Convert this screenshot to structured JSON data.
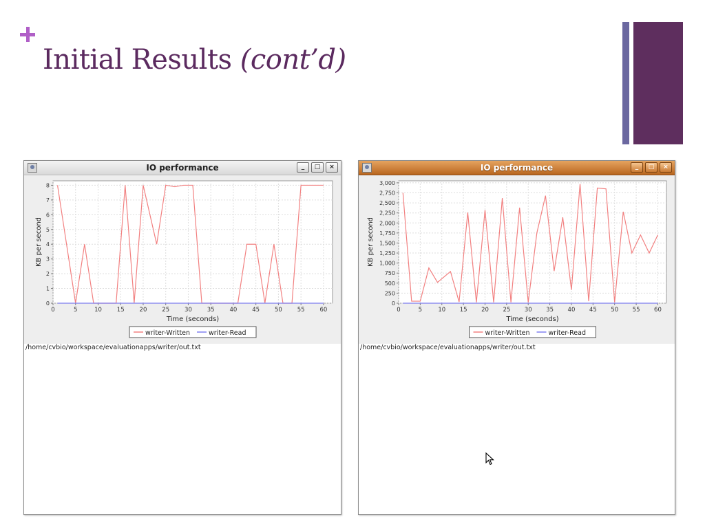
{
  "slide": {
    "title_main": "Initial Results ",
    "title_italic": "(cont’d)",
    "accent_color": "#b05fc7",
    "title_color": "#5b2a5f"
  },
  "windows": [
    {
      "title": "IO performance",
      "path": "/home/cvbio/workspace/evaluationapps/writer/out.txt",
      "buttons": [
        "minimize-icon",
        "maximize-icon",
        "close-icon"
      ]
    },
    {
      "title": "IO performance",
      "path": "/home/cvbio/workspace/evaluationapps/writer/out.txt",
      "buttons": [
        "minimize-icon",
        "maximize-icon",
        "close-icon"
      ]
    }
  ],
  "chart_data": [
    {
      "type": "line",
      "title": "",
      "xlabel": "Time (seconds)",
      "ylabel": "KB per second",
      "xlim": [
        0,
        62
      ],
      "ylim": [
        0,
        8.3
      ],
      "xticks": [
        0,
        5,
        10,
        15,
        20,
        25,
        30,
        35,
        40,
        45,
        50,
        55,
        60
      ],
      "yticks": [
        0,
        1,
        2,
        3,
        4,
        5,
        6,
        7,
        8
      ],
      "ytick_labels": [
        "0",
        "1",
        "2",
        "3",
        "4",
        "5",
        "6",
        "7",
        "8"
      ],
      "grid": true,
      "legend": "bottom-center",
      "series": [
        {
          "name": "writer-Written",
          "color": "#f28080",
          "x": [
            1,
            5,
            7,
            9,
            14,
            16,
            18,
            20,
            23,
            25,
            27,
            29,
            31,
            33,
            35,
            41,
            43,
            45,
            47,
            49,
            51,
            53,
            55,
            60
          ],
          "y": [
            8,
            0,
            4,
            0,
            0,
            8,
            0,
            8,
            4,
            8,
            7.9,
            8,
            8,
            0,
            0,
            0,
            4,
            4,
            0,
            4,
            0,
            0,
            8,
            8
          ]
        },
        {
          "name": "writer-Read",
          "color": "#7f7ff0",
          "x": [
            1,
            60
          ],
          "y": [
            0,
            0
          ]
        }
      ]
    },
    {
      "type": "line",
      "title": "",
      "xlabel": "Time (seconds)",
      "ylabel": "KB per second",
      "xlim": [
        0,
        62
      ],
      "ylim": [
        0,
        3050
      ],
      "xticks": [
        0,
        5,
        10,
        15,
        20,
        25,
        30,
        35,
        40,
        45,
        50,
        55,
        60
      ],
      "yticks": [
        0,
        250,
        500,
        750,
        1000,
        1250,
        1500,
        1750,
        2000,
        2250,
        2500,
        2750,
        3000
      ],
      "ytick_labels": [
        "0",
        "250",
        "500",
        "750",
        "1,000",
        "1,250",
        "1,500",
        "1,750",
        "2,000",
        "2,250",
        "2,500",
        "2,750",
        "3,000"
      ],
      "grid": true,
      "legend": "bottom-center",
      "series": [
        {
          "name": "writer-Written",
          "color": "#f28080",
          "x": [
            1,
            3,
            5,
            7,
            9,
            12,
            14,
            16,
            18,
            20,
            22,
            24,
            26,
            28,
            30,
            32,
            34,
            36,
            38,
            40,
            42,
            44,
            46,
            48,
            50,
            52,
            54,
            56,
            58,
            60
          ],
          "y": [
            2750,
            50,
            50,
            880,
            520,
            790,
            30,
            2260,
            20,
            2320,
            20,
            2620,
            20,
            2380,
            20,
            1750,
            2680,
            800,
            2140,
            330,
            2970,
            50,
            2870,
            2850,
            20,
            2280,
            1250,
            1700,
            1250,
            1700
          ]
        },
        {
          "name": "writer-Read",
          "color": "#7f7ff0",
          "x": [
            1,
            60
          ],
          "y": [
            0,
            0
          ]
        }
      ]
    }
  ]
}
